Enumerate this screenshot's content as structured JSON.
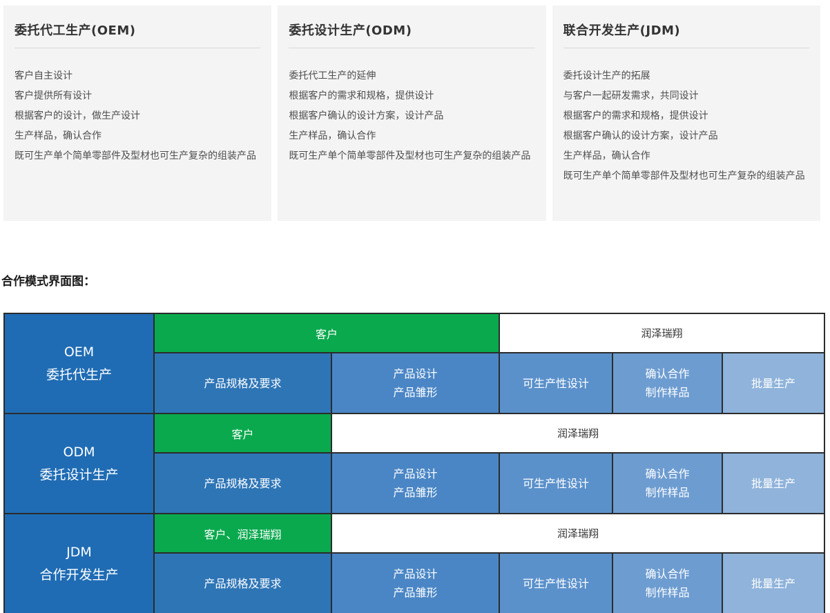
{
  "cards": [
    {
      "title": "委托代工生产(OEM)",
      "lines": [
        "客户自主设计",
        "客户提供所有设计",
        "根据客户的设计，做生产设计",
        "生产样品，确认合作",
        "既可生产单个简单零部件及型材也可生产复杂的组装产品"
      ]
    },
    {
      "title": "委托设计生产(ODM)",
      "lines": [
        "委托代工生产的延伸",
        "根据客户的需求和规格，提供设计",
        "根据客户确认的设计方案，设计产品",
        "生产样品，确认合作",
        "既可生产单个简单零部件及型材也可生产复杂的组装产品"
      ]
    },
    {
      "title": "联合开发生产(JDM)",
      "lines": [
        "委托设计生产的拓展",
        "与客户一起研发需求，共同设计",
        "根据客户的需求和规格，提供设计",
        "根据客户确认的设计方案，设计产品",
        "生产样品，确认合作",
        "既可生产单个简单零部件及型材也可生产复杂的组装产品"
      ]
    }
  ],
  "section_title": "合作模式界面图：",
  "diagram": {
    "rows": [
      {
        "mode": "OEM",
        "mode_desc": "委托代生产",
        "client_cell": "客户",
        "company_cell": "润泽瑞翔",
        "steps": [
          [
            "产品规格及要求"
          ],
          [
            "产品设计",
            "产品雏形"
          ],
          [
            "可生产性设计"
          ],
          [
            "确认合作",
            "制作样品"
          ],
          [
            "批量生产"
          ]
        ]
      },
      {
        "mode": "ODM",
        "mode_desc": "委托设计生产",
        "client_cell": "客户",
        "company_cell": "润泽瑞翔",
        "steps": [
          [
            "产品规格及要求"
          ],
          [
            "产品设计",
            "产品雏形"
          ],
          [
            "可生产性设计"
          ],
          [
            "确认合作",
            "制作样品"
          ],
          [
            "批量生产"
          ]
        ]
      },
      {
        "mode": "JDM",
        "mode_desc": "合作开发生产",
        "client_cell": "客户、润泽瑞翔",
        "company_cell": "润泽瑞翔",
        "steps": [
          [
            "产品规格及要求"
          ],
          [
            "产品设计",
            "产品雏形"
          ],
          [
            "可生产性设计"
          ],
          [
            "确认合作",
            "制作样品"
          ],
          [
            "批量生产"
          ]
        ]
      }
    ],
    "colors": {
      "mode_column": "#1f6cb4",
      "client_green": "#0aa94e",
      "company_white": "#ffffff",
      "grid_line": "#2b2b2b",
      "steps": [
        "#2e75b6",
        "#4a86c5",
        "#5b91cb",
        "#6d9cd1",
        "#8fb3da"
      ]
    }
  }
}
